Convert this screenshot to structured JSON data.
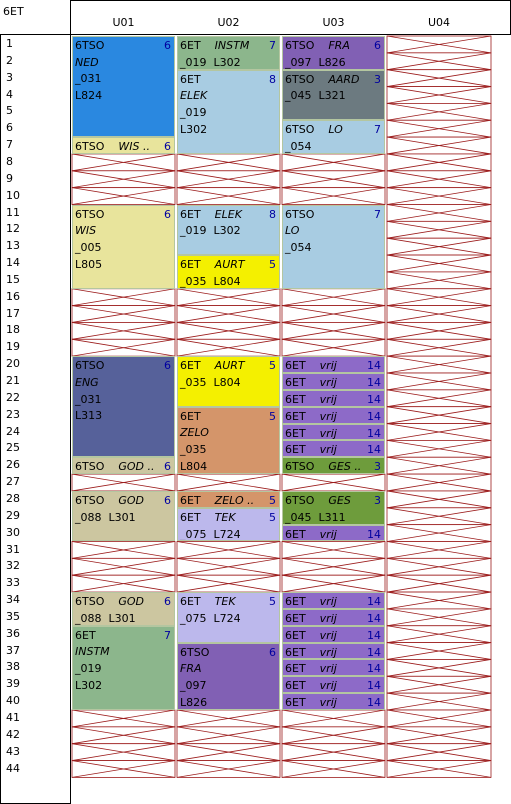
{
  "class_name": "6ET",
  "columns": [
    "U01",
    "U02",
    "U03",
    "U04"
  ],
  "periods": [
    "1",
    "2",
    "3",
    "4",
    "5",
    "6",
    "7",
    "8",
    "9",
    "10",
    "11",
    "12",
    "13",
    "14",
    "15",
    "16",
    "17",
    "18",
    "19",
    "20",
    "21",
    "22",
    "23",
    "24",
    "25",
    "26",
    "27",
    "28",
    "29",
    "30",
    "31",
    "32",
    "33",
    "34",
    "35",
    "36",
    "37",
    "38",
    "39",
    "40",
    "41",
    "42",
    "43",
    "44"
  ],
  "colors": {
    "blue": "#2a88e0",
    "light_blue": "#a8cce2",
    "green": "#8cb68c",
    "purple": "#8160b4",
    "violet": "#8d6ac8",
    "slate": "#6c7a80",
    "yellow_pale": "#e8e49c",
    "yellow": "#f4f000",
    "navy": "#56619a",
    "orange": "#d4956a",
    "khaki": "#ccc6a0",
    "lavender": "#bcb8ec",
    "olive": "#6e9c3c",
    "cross": "#9c1c1c"
  },
  "lessons": [
    {
      "col": 0,
      "start": 1,
      "span": 6,
      "color": "blue",
      "lines": [
        "6TSO",
        "NED",
        "_031",
        "L824"
      ],
      "num": "6"
    },
    {
      "col": 0,
      "start": 7,
      "span": 1,
      "color": "yellow_pale",
      "lines": [
        "6TSO",
        "WIS .."
      ],
      "num": "6"
    },
    {
      "col": 0,
      "start": 11,
      "span": 5,
      "color": "yellow_pale",
      "lines": [
        "6TSO",
        "WIS",
        "_005",
        "L805"
      ],
      "num": "6"
    },
    {
      "col": 0,
      "start": 20,
      "span": 6,
      "color": "navy",
      "lines": [
        "6TSO",
        "ENG",
        "_031",
        "L313"
      ],
      "num": "6"
    },
    {
      "col": 0,
      "start": 26,
      "span": 1,
      "color": "khaki",
      "lines": [
        "6TSO",
        "GOD .."
      ],
      "num": "6"
    },
    {
      "col": 0,
      "start": 28,
      "span": 3,
      "color": "khaki",
      "lines": [
        "6TSO",
        "GOD",
        "_088  L301"
      ],
      "num": "6"
    },
    {
      "col": 0,
      "start": 34,
      "span": 2,
      "color": "khaki",
      "lines": [
        "6TSO",
        "GOD",
        "_088  L301"
      ],
      "num": "6"
    },
    {
      "col": 0,
      "start": 36,
      "span": 5,
      "color": "green",
      "lines": [
        "6ET",
        "INSTM",
        "_019",
        "L302"
      ],
      "num": "7"
    },
    {
      "col": 1,
      "start": 1,
      "span": 2,
      "color": "green",
      "lines": [
        "6ET",
        "INSTM",
        "_019  L302"
      ],
      "num": "7"
    },
    {
      "col": 1,
      "start": 3,
      "span": 5,
      "color": "light_blue",
      "lines": [
        "6ET",
        "ELEK",
        "_019",
        "L302"
      ],
      "num": "8"
    },
    {
      "col": 1,
      "start": 11,
      "span": 3,
      "color": "light_blue",
      "lines": [
        "6ET",
        "ELEK",
        "_019  L302"
      ],
      "num": "8"
    },
    {
      "col": 1,
      "start": 14,
      "span": 2,
      "color": "yellow",
      "lines": [
        "6ET",
        "AURT",
        "_035  L804"
      ],
      "num": "5"
    },
    {
      "col": 1,
      "start": 20,
      "span": 3,
      "color": "yellow",
      "lines": [
        "6ET",
        "AURT",
        "_035  L804"
      ],
      "num": "5"
    },
    {
      "col": 1,
      "start": 23,
      "span": 4,
      "color": "orange",
      "lines": [
        "6ET",
        "ZELO",
        "_035",
        "L804"
      ],
      "num": "5"
    },
    {
      "col": 1,
      "start": 28,
      "span": 1,
      "color": "orange",
      "lines": [
        "6ET",
        "ZELO .."
      ],
      "num": "5"
    },
    {
      "col": 1,
      "start": 29,
      "span": 2,
      "color": "lavender",
      "lines": [
        "6ET",
        "TEK",
        "_075  L724"
      ],
      "num": "5"
    },
    {
      "col": 1,
      "start": 34,
      "span": 3,
      "color": "lavender",
      "lines": [
        "6ET",
        "TEK",
        "_075  L724"
      ],
      "num": "5"
    },
    {
      "col": 1,
      "start": 37,
      "span": 4,
      "color": "purple",
      "lines": [
        "6TSO",
        "FRA",
        "_097",
        "L826"
      ],
      "num": "6"
    },
    {
      "col": 2,
      "start": 1,
      "span": 2,
      "color": "purple",
      "lines": [
        "6TSO",
        "FRA",
        "_097  L826"
      ],
      "num": "6"
    },
    {
      "col": 2,
      "start": 3,
      "span": 3,
      "color": "slate",
      "lines": [
        "6TSO",
        "AARD",
        "_045  L321"
      ],
      "num": "3"
    },
    {
      "col": 2,
      "start": 6,
      "span": 2,
      "color": "light_blue",
      "lines": [
        "6TSO",
        "LO",
        "_054"
      ],
      "num": "7"
    },
    {
      "col": 2,
      "start": 11,
      "span": 5,
      "color": "light_blue",
      "lines": [
        "6TSO",
        "LO",
        "_054"
      ],
      "num": "7"
    },
    {
      "col": 2,
      "start": 20,
      "span": 1,
      "color": "violet",
      "lines": [
        "6ET",
        "vrij"
      ],
      "num": "14"
    },
    {
      "col": 2,
      "start": 21,
      "span": 1,
      "color": "violet",
      "lines": [
        "6ET",
        "vrij"
      ],
      "num": "14"
    },
    {
      "col": 2,
      "start": 22,
      "span": 1,
      "color": "violet",
      "lines": [
        "6ET",
        "vrij"
      ],
      "num": "14"
    },
    {
      "col": 2,
      "start": 23,
      "span": 1,
      "color": "violet",
      "lines": [
        "6ET",
        "vrij"
      ],
      "num": "14"
    },
    {
      "col": 2,
      "start": 24,
      "span": 1,
      "color": "violet",
      "lines": [
        "6ET",
        "vrij"
      ],
      "num": "14"
    },
    {
      "col": 2,
      "start": 25,
      "span": 1,
      "color": "violet",
      "lines": [
        "6ET",
        "vrij"
      ],
      "num": "14"
    },
    {
      "col": 2,
      "start": 26,
      "span": 1,
      "color": "olive",
      "lines": [
        "6TSO",
        "GES .."
      ],
      "num": "3"
    },
    {
      "col": 2,
      "start": 28,
      "span": 2,
      "color": "olive",
      "lines": [
        "6TSO",
        "GES",
        "_045  L311"
      ],
      "num": "3"
    },
    {
      "col": 2,
      "start": 30,
      "span": 1,
      "color": "violet",
      "lines": [
        "6ET",
        "vrij"
      ],
      "num": "14"
    },
    {
      "col": 2,
      "start": 34,
      "span": 1,
      "color": "violet",
      "lines": [
        "6ET",
        "vrij"
      ],
      "num": "14"
    },
    {
      "col": 2,
      "start": 35,
      "span": 1,
      "color": "violet",
      "lines": [
        "6ET",
        "vrij"
      ],
      "num": "14"
    },
    {
      "col": 2,
      "start": 36,
      "span": 1,
      "color": "violet",
      "lines": [
        "6ET",
        "vrij"
      ],
      "num": "14"
    },
    {
      "col": 2,
      "start": 37,
      "span": 1,
      "color": "violet",
      "lines": [
        "6ET",
        "vrij"
      ],
      "num": "14"
    },
    {
      "col": 2,
      "start": 38,
      "span": 1,
      "color": "violet",
      "lines": [
        "6ET",
        "vrij"
      ],
      "num": "14"
    },
    {
      "col": 2,
      "start": 39,
      "span": 1,
      "color": "violet",
      "lines": [
        "6ET",
        "vrij"
      ],
      "num": "14"
    },
    {
      "col": 2,
      "start": 40,
      "span": 1,
      "color": "violet",
      "lines": [
        "6ET",
        "vrij"
      ],
      "num": "14"
    }
  ],
  "blocked_cells": {
    "cols_0_2_periods": [
      8,
      9,
      10,
      16,
      17,
      18,
      19,
      27,
      31,
      32,
      33,
      41,
      42,
      43,
      44
    ],
    "col_2_extra_periods": [],
    "col_3_all": true
  }
}
